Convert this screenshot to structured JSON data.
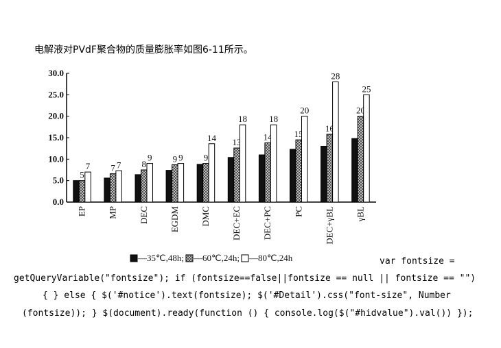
{
  "header": {
    "text": "电解液对PVdF聚合物的质量膨胀率如图6-11所示。"
  },
  "chart_data": {
    "type": "bar",
    "categories": [
      "EP",
      "MP",
      "DEC",
      "EGDM",
      "DMC",
      "DEC+EC",
      "DEC+PC",
      "PC",
      "DEC+γBL",
      "γBL"
    ],
    "series": [
      {
        "name": "—35℃,48h;",
        "color": "#111111",
        "values": [
          5,
          5.6,
          6.4,
          7.4,
          8.8,
          10.4,
          11,
          12.3,
          13,
          14.8
        ]
      },
      {
        "name": "—60℃,24h;",
        "color": "#bbbbbb",
        "fill_style": "crosshatch",
        "values": [
          5,
          6.6,
          7.5,
          8.7,
          9,
          12.6,
          13.8,
          14.5,
          15.8,
          20
        ],
        "value_labels": [
          "5",
          "7",
          "8",
          "9",
          "9",
          "13",
          "14",
          "15",
          "16",
          "20"
        ]
      },
      {
        "name": "—80℃,24h",
        "color": "#ffffff",
        "values": [
          7,
          7.3,
          9,
          9,
          13.6,
          18,
          18,
          20,
          28,
          25
        ],
        "value_labels": [
          "7",
          "7",
          "9",
          "9",
          "14",
          "18",
          "18",
          "20",
          "28",
          "25"
        ]
      }
    ],
    "ylim": [
      0,
      30
    ],
    "yticks": [
      {
        "value": 0,
        "label": "0.0"
      },
      {
        "value": 5,
        "label": "5.0"
      },
      {
        "value": 10,
        "label": "10.0"
      },
      {
        "value": 15,
        "label": "15.0"
      },
      {
        "value": 20,
        "label": "20.0"
      },
      {
        "value": 25,
        "label": "25.0"
      },
      {
        "value": 30,
        "label": "30.0"
      }
    ]
  },
  "code": {
    "lines": [
      "var fontsize =",
      "getQueryVariable(\"fontsize\"); if (fontsize==false||fontsize == null || fontsize == \"\")",
      "{ } else { $('#notice').text(fontsize); $('#Detail').css(\"font-size\", Number",
      "(fontsize)); } $(document).ready(function () { console.log($(\"#hidvalue\").val()) });"
    ]
  }
}
